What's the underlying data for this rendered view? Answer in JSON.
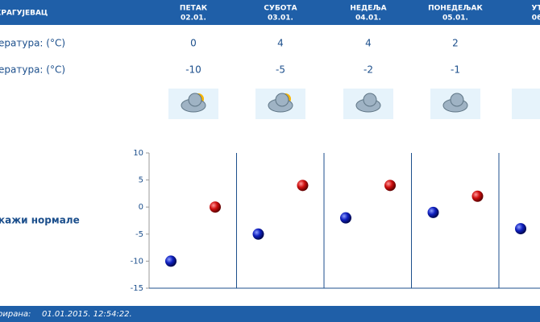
{
  "header": {
    "location": "КРАГУЈЕВАЦ",
    "days": [
      {
        "name": "ПЕТАК",
        "date": "02.01."
      },
      {
        "name": "СУБОТА",
        "date": "03.01."
      },
      {
        "name": "НЕДЕЉА",
        "date": "04.01."
      },
      {
        "name": "ПОНЕДЕЉАК",
        "date": "05.01."
      },
      {
        "name": "УТ",
        "date": "06"
      }
    ]
  },
  "rows": [
    {
      "label": "ература: (°C)",
      "values": [
        0,
        4,
        4,
        2
      ]
    },
    {
      "label": "ература: (°C)",
      "values": [
        -10,
        -5,
        -2,
        -1
      ]
    }
  ],
  "normals_link": "кажи нормале",
  "chart": {
    "type": "scatter",
    "ylim": [
      -15,
      10
    ],
    "yticks": [
      -15,
      -10,
      -5,
      0,
      5,
      10
    ],
    "series": [
      {
        "name": "min",
        "color": "#1020c0",
        "values": [
          -10,
          -5,
          -2,
          -1,
          -4
        ]
      },
      {
        "name": "max",
        "color": "#d01010",
        "values": [
          0,
          4,
          4,
          2,
          null
        ]
      }
    ]
  },
  "footer": {
    "label": "рирана:",
    "timestamp": "01.01.2015. 12:54:22."
  }
}
